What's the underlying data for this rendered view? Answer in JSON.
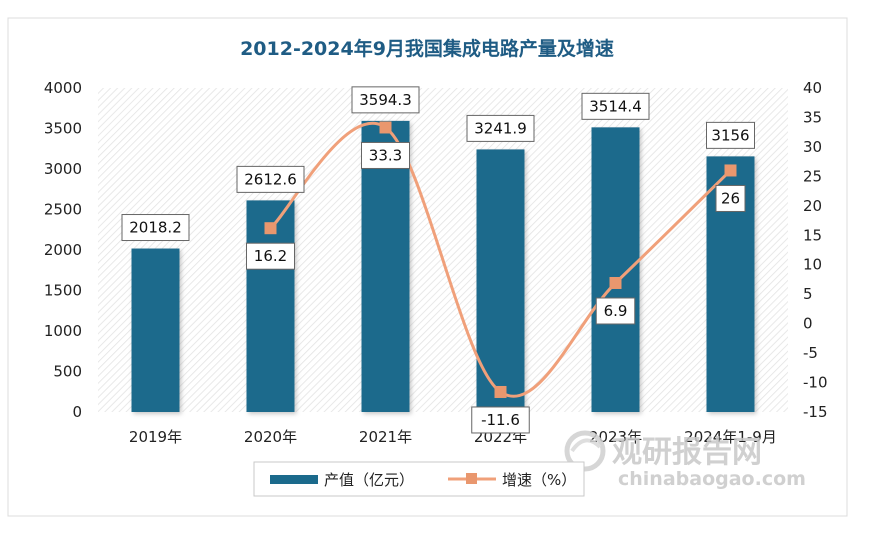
{
  "chart_data": {
    "type": "bar+line",
    "title": "2012-2024年9月我国集成电路产量及增速",
    "categories": [
      "2019年",
      "2020年",
      "2021年",
      "2022年",
      "2023年",
      "2024年1-9月"
    ],
    "series": [
      {
        "name": "产值（亿元）",
        "type": "bar",
        "axis": "left",
        "values": [
          2018.2,
          2612.6,
          3594.3,
          3241.9,
          3514.4,
          3156
        ],
        "labels": [
          "2018.2",
          "2612.6",
          "3594.3",
          "3241.9",
          "3514.4",
          "3156"
        ]
      },
      {
        "name": "增速（%）",
        "type": "line",
        "axis": "right",
        "values": [
          null,
          16.2,
          33.3,
          -11.6,
          6.9,
          26
        ],
        "labels": [
          "",
          "16.2",
          "33.3",
          "-11.6",
          "6.9",
          "26"
        ]
      }
    ],
    "y_left": {
      "min": 0,
      "max": 4000,
      "step": 500,
      "ticks": [
        "0",
        "500",
        "1000",
        "1500",
        "2000",
        "2500",
        "3000",
        "3500",
        "4000"
      ]
    },
    "y_right": {
      "min": -15,
      "max": 40,
      "step": 5,
      "ticks": [
        "-15",
        "-10",
        "-5",
        "0",
        "5",
        "10",
        "15",
        "20",
        "25",
        "30",
        "35",
        "40"
      ]
    },
    "legend_position": "bottom",
    "colors": {
      "bar": "#1b6a8c",
      "line": "#f0a07a",
      "marker": "#e9976e",
      "title": "#1f5c84"
    }
  },
  "watermark": {
    "brand": "观研报告网",
    "site": "chinabaogao.com"
  }
}
